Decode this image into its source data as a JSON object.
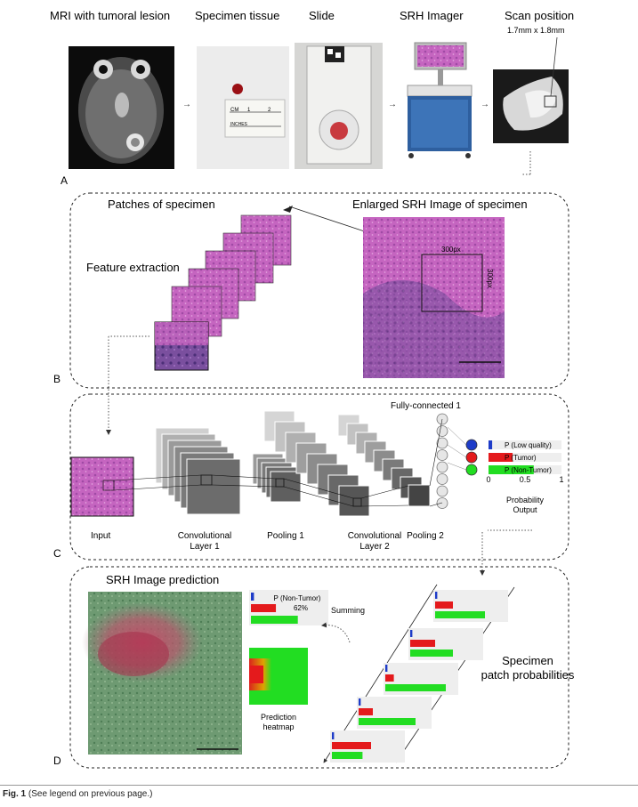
{
  "panel_a": {
    "letter": "A",
    "steps": [
      {
        "label": "MRI with tumoral lesion"
      },
      {
        "label": "Specimen tissue"
      },
      {
        "label": "Slide"
      },
      {
        "label": "SRH Imager"
      },
      {
        "label": "Scan position"
      }
    ],
    "scan_size": "1.7mm x 1.8mm",
    "ruler_cm": "CM",
    "ruler_1": "1",
    "ruler_2": "2",
    "ruler_inches": "INCHES"
  },
  "panel_b": {
    "letter": "B",
    "patches_title": "Patches of specimen",
    "enlarged_title": "Enlarged SRH Image of specimen",
    "feature_extraction": "Feature extraction",
    "px_horizontal": "300px",
    "px_vertical": "300px"
  },
  "panel_c": {
    "letter": "C",
    "fc_label": "Fully-connected 1",
    "input_label": "Input",
    "conv1_line1": "Convolutional",
    "conv1_line2": "Layer 1",
    "pool1": "Pooling 1",
    "conv2_line1": "Convolutional",
    "conv2_line2": "Layer 2",
    "pool2": "Pooling 2",
    "prob_output_line1": "Probability",
    "prob_output_line2": "Output",
    "axis_0": "0",
    "axis_05": "0.5",
    "axis_1": "1",
    "outputs": [
      {
        "label": "P (Low quality)",
        "value": 0.05,
        "color": "#1e3cc8"
      },
      {
        "label": "P (Tumor)",
        "value": 0.33,
        "color": "#e41a1c"
      },
      {
        "label": "P (Non-Tumor)",
        "value": 0.62,
        "color": "#22dd22"
      }
    ]
  },
  "panel_d": {
    "letter": "D",
    "prediction_title": "SRH Image prediction",
    "summary_label": "P (Non-Tumor)",
    "summary_pct": "62%",
    "summing": "Summing",
    "heatmap_line1": "Prediction",
    "heatmap_line2": "heatmap",
    "patch_probs_line1": "Specimen",
    "patch_probs_line2": "patch probabilities",
    "summary_bars": [
      0.04,
      0.33,
      0.62
    ],
    "patch_bars": [
      [
        0.03,
        0.25,
        0.7
      ],
      [
        0.03,
        0.35,
        0.6
      ],
      [
        0.03,
        0.12,
        0.85
      ],
      [
        0.03,
        0.2,
        0.8
      ],
      [
        0.03,
        0.55,
        0.43
      ]
    ]
  },
  "caption": {
    "label": "Fig. 1",
    "text": "(See legend on previous page.)"
  },
  "colors": {
    "blue": "#1e3cc8",
    "red": "#e41a1c",
    "green": "#22dd22",
    "tissue": "#c85fc3",
    "stained": "#6b9a6f"
  }
}
